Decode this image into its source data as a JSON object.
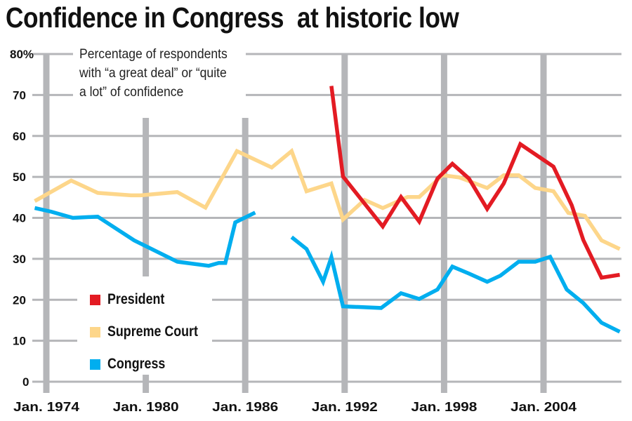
{
  "chart_data": {
    "type": "line",
    "title": "Confidence in Congress  at historic low",
    "annotation": "Percentage of respondents\nwith “a great deal” or “quite\na lot” of confidence",
    "xlabel": "",
    "ylabel": "",
    "ylim": [
      0,
      80
    ],
    "yticks": [
      "0",
      "10",
      "20",
      "30",
      "40",
      "50",
      "60",
      "70",
      "80%"
    ],
    "ytick_values": [
      0,
      10,
      20,
      30,
      40,
      50,
      60,
      70,
      80
    ],
    "xticks": [
      "Jan. 1974",
      "Jan. 1980",
      "Jan. 1986",
      "Jan. 1992",
      "Jan. 1998",
      "Jan. 2004"
    ],
    "xtick_values": [
      1974,
      1980,
      1986,
      1992,
      1998,
      2004
    ],
    "grid": true,
    "legend_position": "bottom-left",
    "colors": {
      "grid": "#b5b6b9"
    },
    "series": [
      {
        "name": "President",
        "color": "#e31b23",
        "segments": [
          [
            [
              1991.2,
              72.2
            ],
            [
              1991.9,
              50.1
            ],
            [
              1994.3,
              37.9
            ],
            [
              1995.4,
              45.1
            ],
            [
              1996.5,
              39.1
            ],
            [
              1997.6,
              49.6
            ],
            [
              1998.5,
              53.2
            ],
            [
              1999.5,
              49.6
            ],
            [
              2000.6,
              42.2
            ],
            [
              2001.6,
              48.4
            ],
            [
              2002.6,
              58.0
            ],
            [
              2004.6,
              52.5
            ],
            [
              2005.7,
              43.1
            ],
            [
              2006.4,
              34.6
            ],
            [
              2007.5,
              25.4
            ],
            [
              2008.6,
              26.1
            ]
          ]
        ]
      },
      {
        "name": "Supreme Court",
        "color": "#fdd68a",
        "segments": [
          [
            [
              1973.3,
              44.1
            ],
            [
              1975.5,
              49.1
            ],
            [
              1977.1,
              46.1
            ],
            [
              1979.1,
              45.5
            ],
            [
              1979.7,
              45.5
            ],
            [
              1981.9,
              46.3
            ],
            [
              1983.6,
              42.5
            ],
            [
              1985.5,
              56.3
            ],
            [
              1987.6,
              52.3
            ],
            [
              1988.8,
              56.3
            ],
            [
              1989.7,
              46.5
            ],
            [
              1991.2,
              48.4
            ],
            [
              1991.9,
              39.6
            ],
            [
              1993.2,
              44.4
            ],
            [
              1994.3,
              42.4
            ],
            [
              1995.8,
              45.1
            ],
            [
              1996.5,
              45.1
            ],
            [
              1997.9,
              50.4
            ],
            [
              1998.9,
              49.9
            ],
            [
              2000.6,
              47.3
            ],
            [
              2001.6,
              50.4
            ],
            [
              2002.5,
              50.4
            ],
            [
              2003.5,
              47.3
            ],
            [
              2004.6,
              46.5
            ],
            [
              2005.5,
              41.2
            ],
            [
              2006.5,
              40.5
            ],
            [
              2007.5,
              34.5
            ],
            [
              2008.6,
              32.4
            ]
          ]
        ]
      },
      {
        "name": "Congress",
        "color": "#00aeef",
        "segments": [
          [
            [
              1973.3,
              42.4
            ],
            [
              1974.3,
              41.5
            ],
            [
              1975.6,
              40.0
            ],
            [
              1977.1,
              40.3
            ],
            [
              1979.3,
              34.5
            ],
            [
              1981.9,
              29.3
            ],
            [
              1983.8,
              28.3
            ],
            [
              1984.4,
              29.0
            ],
            [
              1984.8,
              29.0
            ],
            [
              1985.4,
              38.9
            ],
            [
              1986.6,
              41.3
            ]
          ],
          [
            [
              1988.8,
              35.3
            ],
            [
              1989.7,
              32.4
            ],
            [
              1990.7,
              24.4
            ],
            [
              1991.2,
              30.4
            ],
            [
              1991.9,
              18.4
            ],
            [
              1994.2,
              18.0
            ],
            [
              1995.4,
              21.6
            ],
            [
              1996.5,
              20.2
            ],
            [
              1997.6,
              22.5
            ],
            [
              1998.5,
              28.1
            ],
            [
              1999.5,
              26.4
            ],
            [
              2000.6,
              24.4
            ],
            [
              2001.4,
              25.9
            ],
            [
              2002.5,
              29.3
            ],
            [
              2003.5,
              29.3
            ],
            [
              2004.4,
              30.5
            ],
            [
              2005.4,
              22.5
            ],
            [
              2006.4,
              19.2
            ],
            [
              2007.5,
              14.4
            ],
            [
              2008.6,
              12.2
            ]
          ]
        ]
      }
    ]
  }
}
